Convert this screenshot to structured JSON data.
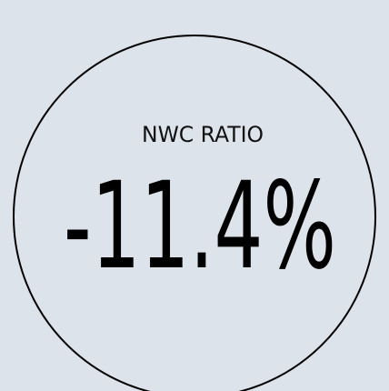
{
  "label": "NWC RATIO",
  "value": "-11.4%"
}
